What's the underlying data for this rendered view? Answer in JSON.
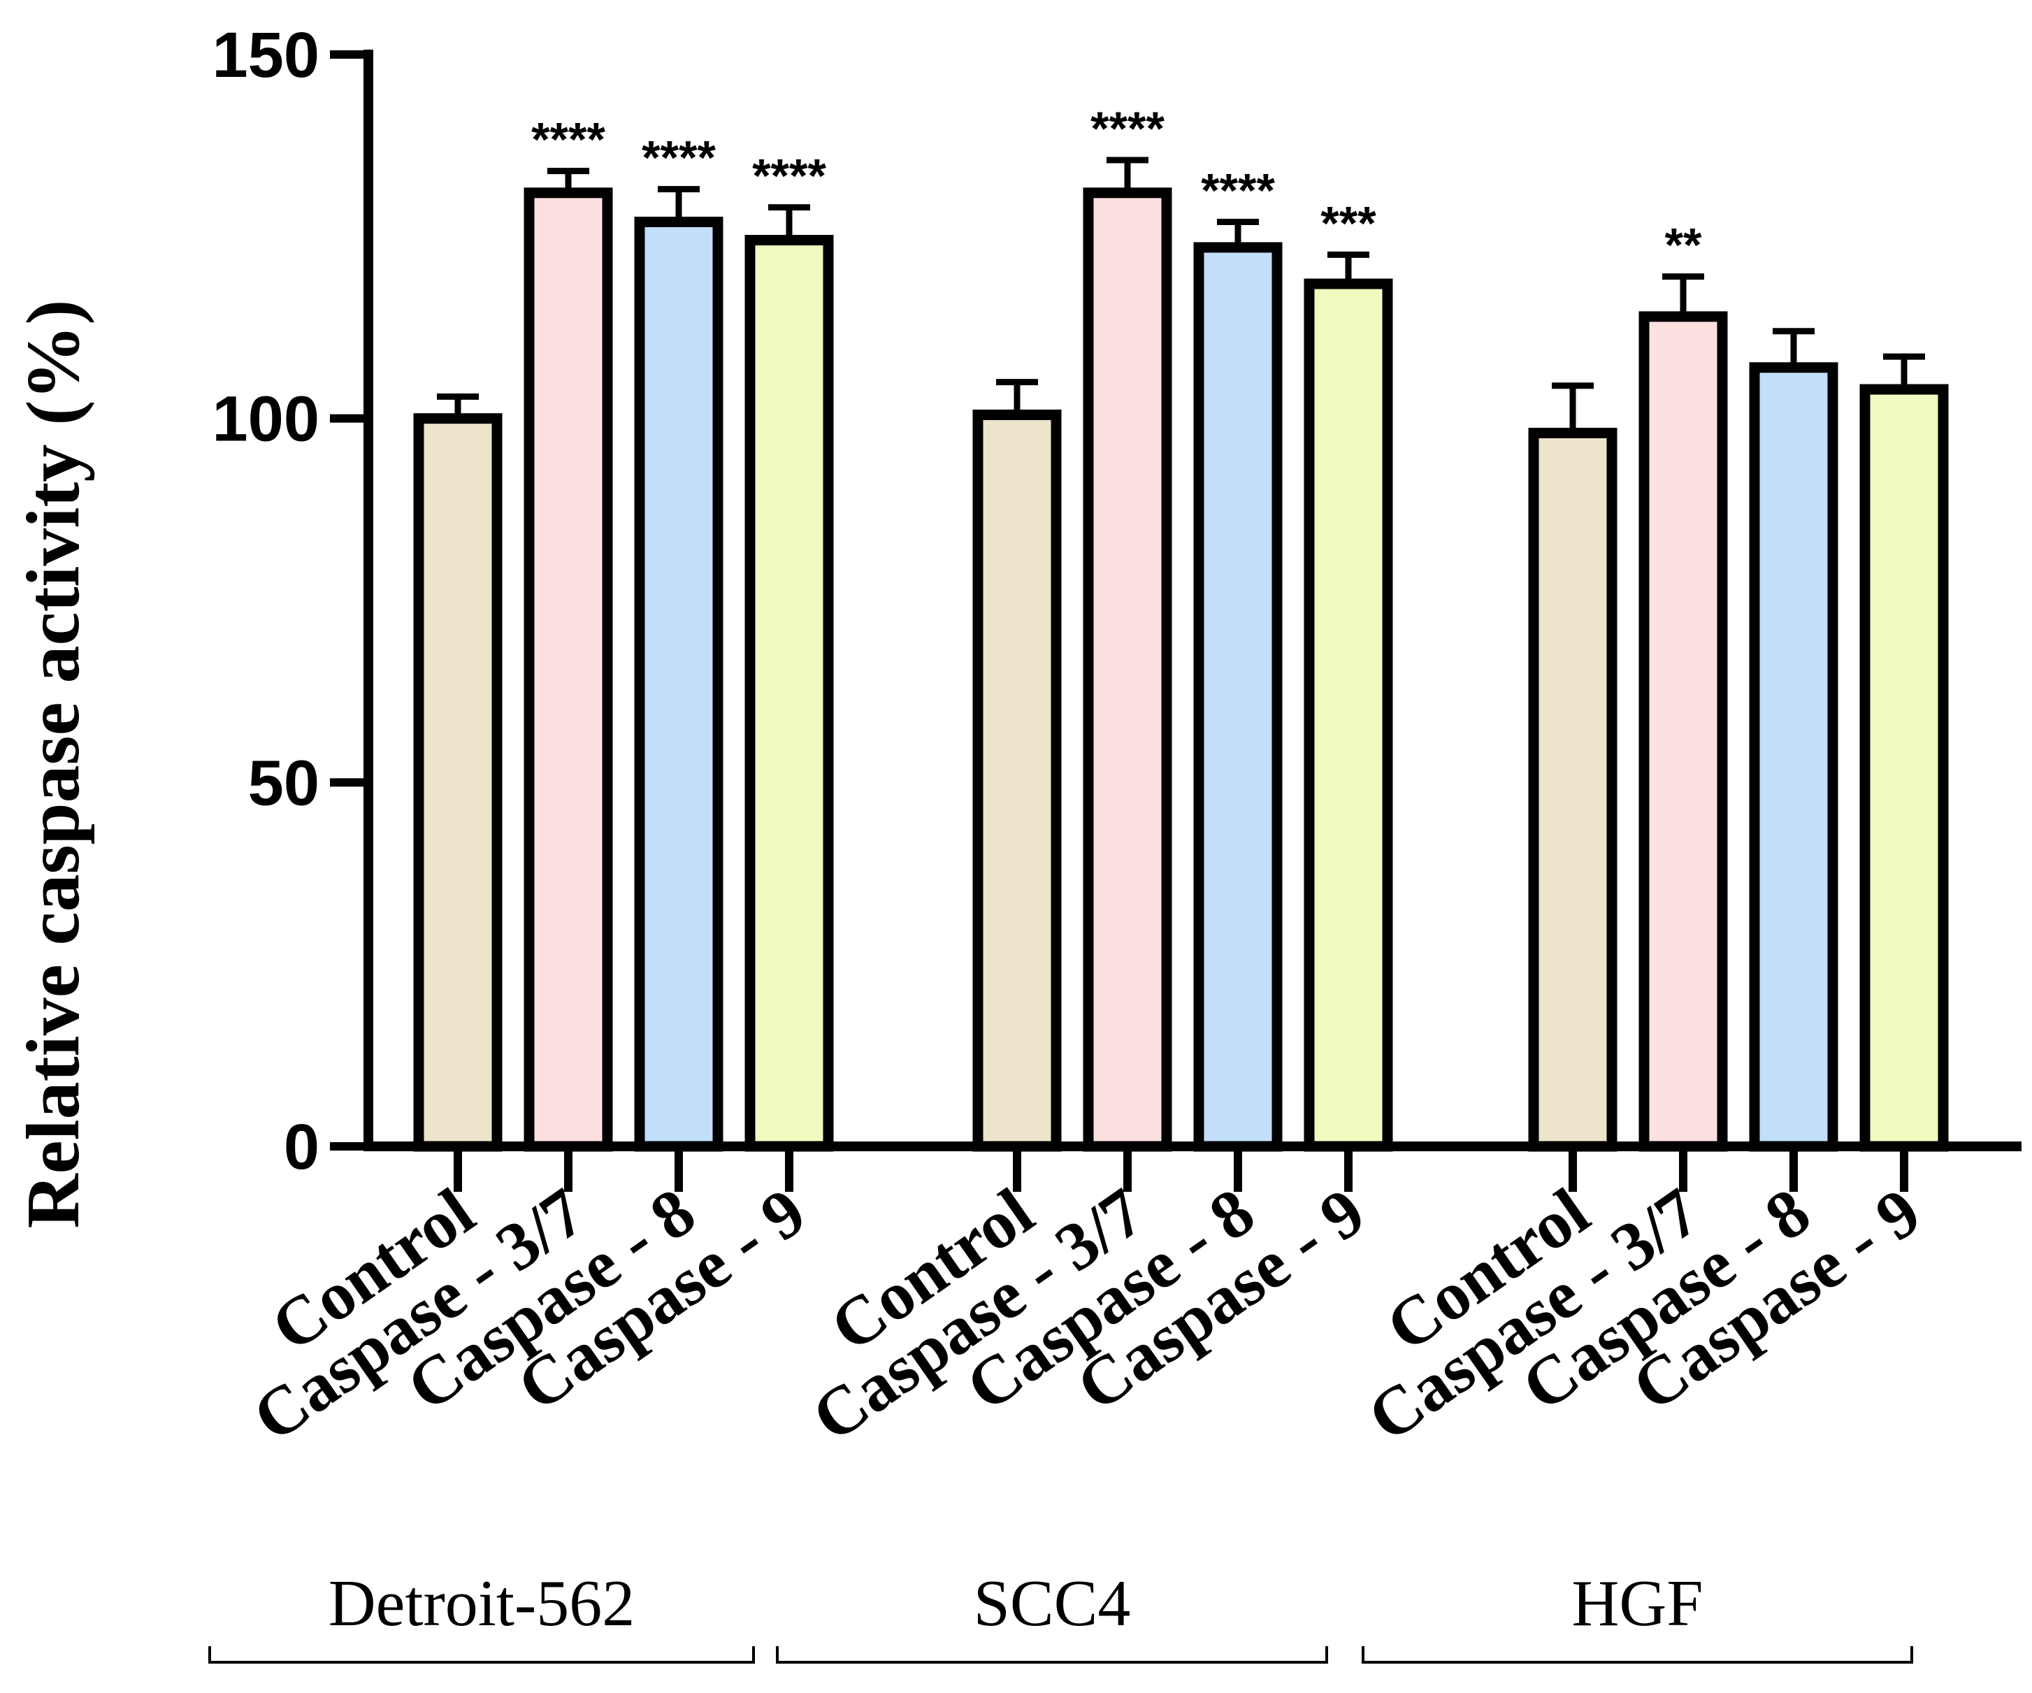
{
  "chart_data": {
    "type": "bar",
    "title": "",
    "xlabel": "",
    "ylabel": "Relative caspase activity (%)",
    "ylim": [
      0,
      150
    ],
    "yticks": [
      0,
      50,
      100,
      150
    ],
    "grid": false,
    "series_colors": {
      "Control": "#ede5cb",
      "Caspase - 3/7": "#fde0e0",
      "Caspase - 8": "#c3defa",
      "Caspase - 9": "#f0fbc0"
    },
    "groups": [
      {
        "name": "Detroit-562",
        "bars": [
          {
            "label": "Control",
            "value": 100,
            "error": 3,
            "sig": ""
          },
          {
            "label": "Caspase - 3/7",
            "value": 131,
            "error": 3,
            "sig": "****"
          },
          {
            "label": "Caspase - 8",
            "value": 127,
            "error": 4.5,
            "sig": "****"
          },
          {
            "label": "Caspase - 9",
            "value": 124.5,
            "error": 4.5,
            "sig": "****"
          }
        ]
      },
      {
        "name": "SCC4",
        "bars": [
          {
            "label": "Control",
            "value": 100.5,
            "error": 4.5,
            "sig": ""
          },
          {
            "label": "Caspase - 3/7",
            "value": 131,
            "error": 4.5,
            "sig": "****"
          },
          {
            "label": "Caspase - 8",
            "value": 123.5,
            "error": 3.5,
            "sig": "****"
          },
          {
            "label": "Caspase - 9",
            "value": 118.5,
            "error": 4,
            "sig": "***"
          }
        ]
      },
      {
        "name": "HGF",
        "bars": [
          {
            "label": "Control",
            "value": 98,
            "error": 6.5,
            "sig": ""
          },
          {
            "label": "Caspase - 3/7",
            "value": 114,
            "error": 5.5,
            "sig": "**"
          },
          {
            "label": "Caspase - 8",
            "value": 107,
            "error": 5,
            "sig": ""
          },
          {
            "label": "Caspase - 9",
            "value": 104,
            "error": 4.5,
            "sig": ""
          }
        ]
      }
    ]
  }
}
